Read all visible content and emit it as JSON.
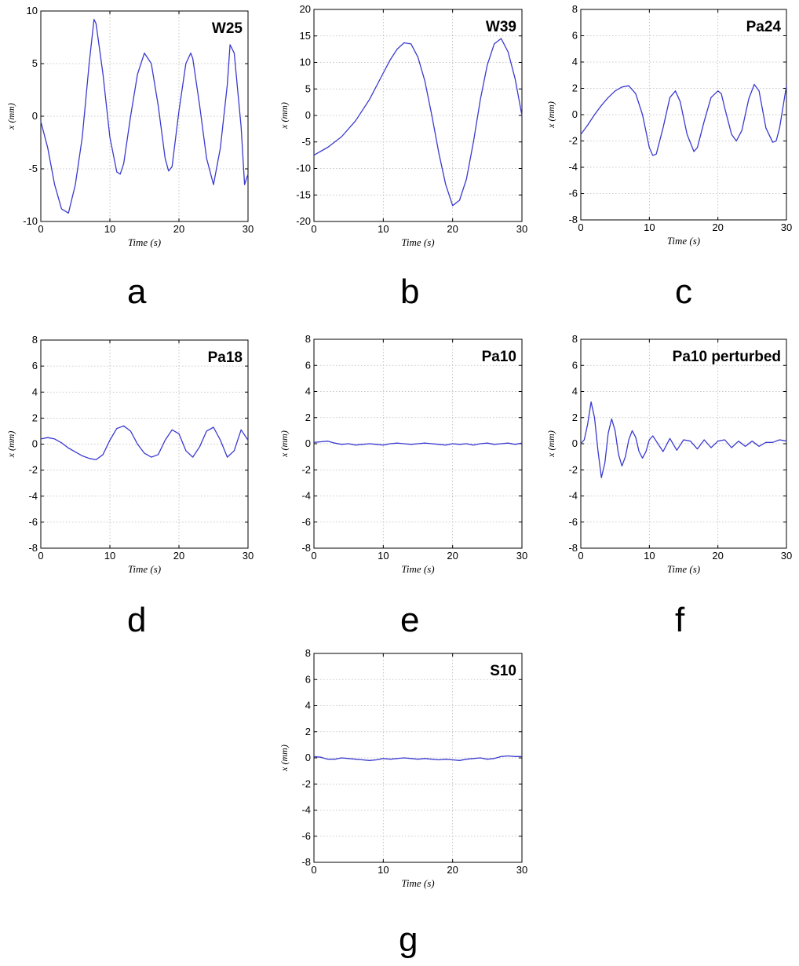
{
  "chart_data": [
    {
      "type": "line",
      "letter": "a",
      "title": "W25",
      "xlabel": "Time (s)",
      "ylabel": "x (mm)",
      "xlim": [
        0,
        30
      ],
      "ylim": [
        -10,
        10
      ],
      "xticks": [
        0,
        10,
        20,
        30
      ],
      "yticks": [
        -10,
        -5,
        0,
        5,
        10
      ],
      "grid": true,
      "line_color": "#3a3ad0",
      "series": [
        {
          "x": [
            0,
            1,
            2,
            3,
            4,
            5,
            6,
            7,
            7.7,
            8,
            9,
            10,
            11,
            11.5,
            12,
            13,
            14,
            15,
            16,
            17,
            18,
            18.5,
            19,
            20,
            21,
            21.7,
            22,
            23,
            24,
            25,
            26,
            27,
            27.4,
            28,
            29,
            29.5,
            30
          ],
          "y": [
            -0.5,
            -3,
            -6.5,
            -8.8,
            -9.2,
            -6.5,
            -2,
            5,
            9.2,
            8.8,
            4,
            -2,
            -5.3,
            -5.5,
            -4.5,
            0,
            4,
            6,
            5,
            1,
            -4,
            -5.2,
            -4.8,
            0.5,
            5,
            6,
            5.5,
            1,
            -4,
            -6.5,
            -3,
            3,
            6.8,
            6,
            -1,
            -6.5,
            -5.5
          ]
        }
      ]
    },
    {
      "type": "line",
      "letter": "b",
      "title": "W39",
      "xlabel": "Time (s)",
      "ylabel": "x (mm)",
      "xlim": [
        0,
        30
      ],
      "ylim": [
        -20,
        20
      ],
      "xticks": [
        0,
        10,
        20,
        30
      ],
      "yticks": [
        -20,
        -15,
        -10,
        -5,
        0,
        5,
        10,
        15,
        20
      ],
      "grid": true,
      "line_color": "#3a3ad0",
      "series": [
        {
          "x": [
            0,
            2,
            4,
            6,
            8,
            10,
            11,
            12,
            13,
            14,
            15,
            16,
            17,
            18,
            19,
            20,
            21,
            22,
            23,
            24,
            25,
            26,
            27,
            28,
            29,
            30
          ],
          "y": [
            -7.5,
            -6,
            -4,
            -1,
            3,
            8,
            10.5,
            12.5,
            13.7,
            13.5,
            11,
            6.5,
            0,
            -7,
            -13,
            -17,
            -16,
            -12,
            -5,
            3,
            9.5,
            13.5,
            14.5,
            12,
            7,
            0
          ]
        }
      ]
    },
    {
      "type": "line",
      "letter": "c",
      "title": "Pa24",
      "xlabel": "Time (s)",
      "ylabel": "x (mm)",
      "xlim": [
        0,
        30
      ],
      "ylim": [
        -8,
        8
      ],
      "xticks": [
        0,
        10,
        20,
        30
      ],
      "yticks": [
        -8,
        -6,
        -4,
        -2,
        0,
        2,
        4,
        6,
        8
      ],
      "grid": true,
      "line_color": "#3a3ad0",
      "series": [
        {
          "x": [
            0,
            1,
            2,
            3,
            4,
            5,
            6,
            7,
            8,
            9,
            10,
            10.5,
            11,
            12,
            13,
            13.8,
            14.5,
            15.5,
            16.5,
            17,
            18,
            19,
            20,
            20.5,
            21,
            22,
            22.7,
            23.5,
            24.5,
            25.3,
            26,
            27,
            28,
            28.5,
            29,
            30
          ],
          "y": [
            -1.5,
            -0.8,
            0,
            0.7,
            1.3,
            1.8,
            2.1,
            2.2,
            1.6,
            0,
            -2.5,
            -3.1,
            -3,
            -1,
            1.3,
            1.8,
            1,
            -1.5,
            -2.8,
            -2.5,
            -0.5,
            1.3,
            1.8,
            1.6,
            0.5,
            -1.5,
            -2,
            -1.2,
            1.2,
            2.3,
            1.8,
            -1,
            -2.1,
            -2,
            -1,
            2.2
          ]
        }
      ]
    },
    {
      "type": "line",
      "letter": "d",
      "title": "Pa18",
      "xlabel": "Time (s)",
      "ylabel": "x (mm)",
      "xlim": [
        0,
        30
      ],
      "ylim": [
        -8,
        8
      ],
      "xticks": [
        0,
        10,
        20,
        30
      ],
      "yticks": [
        -8,
        -6,
        -4,
        -2,
        0,
        2,
        4,
        6,
        8
      ],
      "grid": true,
      "line_color": "#3a3ad0",
      "series": [
        {
          "x": [
            0,
            1,
            2,
            3,
            4,
            5,
            6,
            7,
            8,
            9,
            10,
            11,
            12,
            13,
            14,
            15,
            16,
            17,
            18,
            19,
            20,
            21,
            22,
            23,
            24,
            25,
            26,
            27,
            28,
            29,
            30
          ],
          "y": [
            0.4,
            0.5,
            0.4,
            0.1,
            -0.3,
            -0.6,
            -0.9,
            -1.1,
            -1.2,
            -0.8,
            0.3,
            1.2,
            1.4,
            1,
            0,
            -0.7,
            -1,
            -0.8,
            0.3,
            1.1,
            0.8,
            -0.5,
            -1,
            -0.2,
            1,
            1.3,
            0.3,
            -1,
            -0.5,
            1.1,
            0.3
          ]
        }
      ]
    },
    {
      "type": "line",
      "letter": "e",
      "title": "Pa10",
      "xlabel": "Time (s)",
      "ylabel": "x (mm)",
      "xlim": [
        0,
        30
      ],
      "ylim": [
        -8,
        8
      ],
      "xticks": [
        0,
        10,
        20,
        30
      ],
      "yticks": [
        -8,
        -6,
        -4,
        -2,
        0,
        2,
        4,
        6,
        8
      ],
      "grid": true,
      "line_color": "#3a3ad0",
      "series": [
        {
          "x": [
            0,
            1,
            2,
            3,
            4,
            5,
            6,
            7,
            8,
            9,
            10,
            11,
            12,
            13,
            14,
            15,
            16,
            17,
            18,
            19,
            20,
            21,
            22,
            23,
            24,
            25,
            26,
            27,
            28,
            29,
            30
          ],
          "y": [
            0.1,
            0.15,
            0.2,
            0.05,
            -0.05,
            0,
            -0.1,
            -0.05,
            0,
            -0.05,
            -0.1,
            0,
            0.05,
            0,
            -0.05,
            0,
            0.05,
            0,
            -0.05,
            -0.1,
            0,
            -0.05,
            0,
            -0.1,
            0,
            0.05,
            -0.05,
            0,
            0.05,
            -0.05,
            0.05
          ]
        }
      ]
    },
    {
      "type": "line",
      "letter": "f",
      "title": "Pa10 perturbed",
      "xlabel": "Time (s)",
      "ylabel": "x (mm)",
      "xlim": [
        0,
        30
      ],
      "ylim": [
        -8,
        8
      ],
      "xticks": [
        0,
        10,
        20,
        30
      ],
      "yticks": [
        -8,
        -6,
        -4,
        -2,
        0,
        2,
        4,
        6,
        8
      ],
      "grid": true,
      "line_color": "#3a3ad0",
      "series": [
        {
          "x": [
            0,
            0.5,
            1,
            1.5,
            2,
            2.5,
            3,
            3.5,
            4,
            4.5,
            5,
            5.5,
            6,
            6.5,
            7,
            7.5,
            8,
            8.5,
            9,
            9.5,
            10,
            10.5,
            11,
            12,
            13,
            14,
            15,
            16,
            17,
            18,
            19,
            20,
            21,
            22,
            23,
            24,
            25,
            26,
            27,
            28,
            29,
            30
          ],
          "y": [
            0,
            0.3,
            1.5,
            3.2,
            2,
            -0.5,
            -2.6,
            -1.5,
            0.8,
            1.9,
            1,
            -0.8,
            -1.7,
            -1,
            0.3,
            1,
            0.5,
            -0.6,
            -1.1,
            -0.6,
            0.3,
            0.6,
            0.2,
            -0.6,
            0.4,
            -0.5,
            0.3,
            0.2,
            -0.4,
            0.3,
            -0.3,
            0.2,
            0.3,
            -0.3,
            0.2,
            -0.2,
            0.2,
            -0.2,
            0.1,
            0.1,
            0.3,
            0.2
          ]
        }
      ]
    },
    {
      "type": "line",
      "letter": "g",
      "title": "S10",
      "xlabel": "Time (s)",
      "ylabel": "x (mm)",
      "xlim": [
        0,
        30
      ],
      "ylim": [
        -8,
        8
      ],
      "xticks": [
        0,
        10,
        20,
        30
      ],
      "yticks": [
        -8,
        -6,
        -4,
        -2,
        0,
        2,
        4,
        6,
        8
      ],
      "grid": true,
      "line_color": "#3a3ad0",
      "series": [
        {
          "x": [
            0,
            1,
            2,
            3,
            4,
            5,
            6,
            7,
            8,
            9,
            10,
            11,
            12,
            13,
            14,
            15,
            16,
            17,
            18,
            19,
            20,
            21,
            22,
            23,
            24,
            25,
            26,
            27,
            28,
            29,
            30
          ],
          "y": [
            0.1,
            0.05,
            -0.1,
            -0.1,
            0,
            -0.05,
            -0.1,
            -0.15,
            -0.2,
            -0.15,
            -0.05,
            -0.1,
            -0.05,
            0,
            -0.05,
            -0.1,
            -0.05,
            -0.1,
            -0.15,
            -0.1,
            -0.15,
            -0.2,
            -0.1,
            -0.05,
            0,
            -0.1,
            -0.05,
            0.1,
            0.15,
            0.1,
            0.1
          ]
        }
      ]
    }
  ]
}
